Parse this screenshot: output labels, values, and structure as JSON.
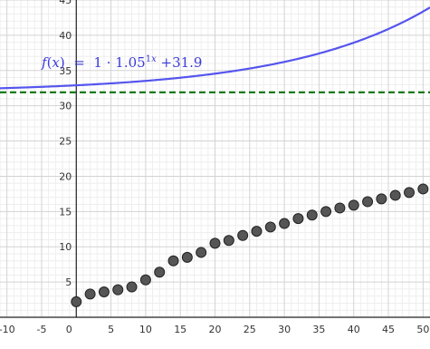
{
  "chart_data": {
    "type": "scatter",
    "title": "",
    "xlabel": "",
    "ylabel": "",
    "xlim": [
      -11,
      51
    ],
    "ylim": [
      0,
      45
    ],
    "x_ticks": [
      -10,
      -5,
      0,
      5,
      10,
      15,
      20,
      25,
      30,
      35,
      40,
      45,
      50
    ],
    "y_ticks": [
      5,
      10,
      15,
      20,
      25,
      30,
      35,
      40,
      45
    ],
    "x_tick_labels": [
      "-10",
      "-5",
      "0",
      "5",
      "10",
      "15",
      "20",
      "25",
      "30",
      "35",
      "40",
      "45",
      "50"
    ],
    "y_tick_labels": [
      "5",
      "10",
      "15",
      "20",
      "25",
      "30",
      "35",
      "40",
      "45"
    ],
    "grid": true,
    "series": [
      {
        "kind": "points",
        "color": "#555555",
        "x": [
          0,
          2,
          4,
          6,
          8,
          10,
          12,
          14,
          16,
          18,
          20,
          22,
          24,
          26,
          28,
          30,
          32,
          34,
          36,
          38,
          40,
          42,
          44,
          46,
          48,
          50
        ],
        "y": [
          2.2,
          3.3,
          3.6,
          3.9,
          4.3,
          5.3,
          6.4,
          8.0,
          8.5,
          9.2,
          10.5,
          10.9,
          11.6,
          12.2,
          12.8,
          13.3,
          14.0,
          14.5,
          15.0,
          15.5,
          15.9,
          16.4,
          16.8,
          17.3,
          17.7,
          18.2
        ]
      },
      {
        "kind": "function",
        "color": "#5555ee",
        "a": 1,
        "b": 1.05,
        "c": 31.9,
        "label": {
          "lhs_func": "f",
          "lhs_var": "x",
          "equals": "=",
          "coeff": "1",
          "dot": "·",
          "base": "1.05",
          "exp_coeff": "1",
          "exp_var": "x",
          "plus": "+",
          "const": "31.9"
        }
      },
      {
        "kind": "asymptote",
        "color": "#1a7a1a",
        "y": 31.9,
        "style": "dashed"
      }
    ]
  }
}
